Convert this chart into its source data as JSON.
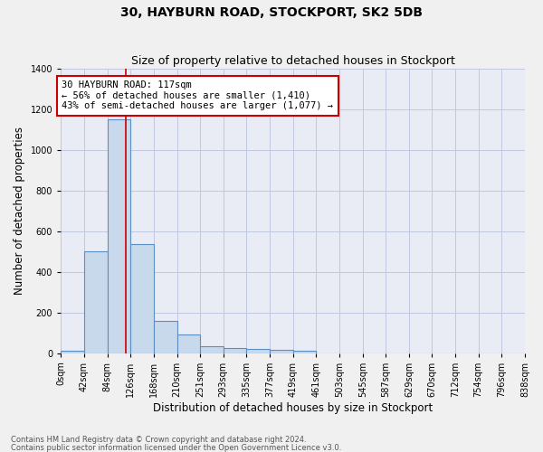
{
  "title": "30, HAYBURN ROAD, STOCKPORT, SK2 5DB",
  "subtitle": "Size of property relative to detached houses in Stockport",
  "xlabel": "Distribution of detached houses by size in Stockport",
  "ylabel": "Number of detached properties",
  "footnote1": "Contains HM Land Registry data © Crown copyright and database right 2024.",
  "footnote2": "Contains public sector information licensed under the Open Government Licence v3.0.",
  "bin_edges": [
    0,
    42,
    84,
    126,
    168,
    210,
    251,
    293,
    335,
    377,
    419,
    461,
    503,
    545,
    587,
    629,
    670,
    712,
    754,
    796,
    838
  ],
  "bar_heights": [
    10,
    500,
    1150,
    535,
    160,
    90,
    35,
    25,
    20,
    15,
    10,
    0,
    0,
    0,
    0,
    0,
    0,
    0,
    0,
    0
  ],
  "bar_color": "#c9d9ec",
  "bar_edgecolor": "#5b8fc4",
  "grid_color": "#c0c8e0",
  "bg_color": "#eaecf5",
  "fig_color": "#f0f0f0",
  "property_line_x": 117,
  "property_line_color": "#cc0000",
  "annotation_line1": "30 HAYBURN ROAD: 117sqm",
  "annotation_line2": "← 56% of detached houses are smaller (1,410)",
  "annotation_line3": "43% of semi-detached houses are larger (1,077) →",
  "annotation_box_color": "#cc0000",
  "ylim": [
    0,
    1400
  ],
  "yticks": [
    0,
    200,
    400,
    600,
    800,
    1000,
    1200,
    1400
  ],
  "tick_labels": [
    "0sqm",
    "42sqm",
    "84sqm",
    "126sqm",
    "168sqm",
    "210sqm",
    "251sqm",
    "293sqm",
    "335sqm",
    "377sqm",
    "419sqm",
    "461sqm",
    "503sqm",
    "545sqm",
    "587sqm",
    "629sqm",
    "670sqm",
    "712sqm",
    "754sqm",
    "796sqm",
    "838sqm"
  ],
  "title_fontsize": 10,
  "subtitle_fontsize": 9,
  "axis_label_fontsize": 8.5,
  "tick_fontsize": 7,
  "annotation_fontsize": 7.5,
  "footnote_fontsize": 6
}
